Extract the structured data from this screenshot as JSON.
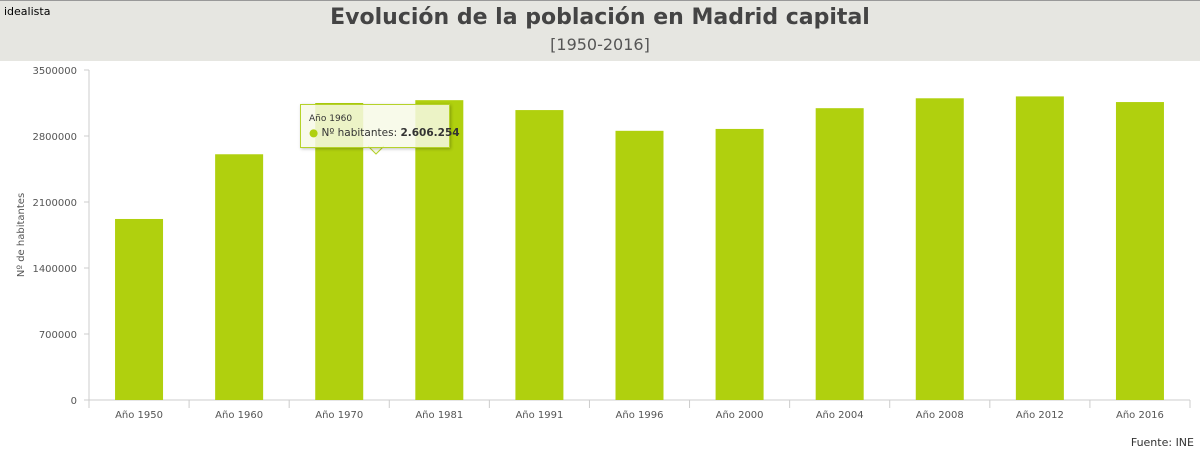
{
  "header": {
    "logo": "idealista",
    "title": "Evolución de la población en Madrid capital",
    "subtitle": "[1950-2016]"
  },
  "source": "Fuente: INE",
  "tooltip": {
    "title": "Año 1960",
    "label": "Nº habitantes: ",
    "value": "2.606.254"
  },
  "chart_data": {
    "type": "bar",
    "title": "Evolución de la población en Madrid capital",
    "subtitle": "[1950-2016]",
    "xlabel": "",
    "ylabel": "Nº de habitantes",
    "ylim": [
      0,
      3500000
    ],
    "yticks": [
      "0",
      "700000",
      "1400000",
      "2100000",
      "2800000",
      "3500000"
    ],
    "grid": false,
    "color": "#b0d00e",
    "categories": [
      "Año 1950",
      "Año 1960",
      "Año 1970",
      "Año 1981",
      "Año 1991",
      "Año 1996",
      "Año 2000",
      "Año 2004",
      "Año 2008",
      "Año 2012",
      "Año 2016"
    ],
    "values": [
      1920000,
      2606254,
      3150000,
      3180000,
      3075000,
      2855000,
      2875000,
      3095000,
      3200000,
      3220000,
      3160000
    ]
  }
}
